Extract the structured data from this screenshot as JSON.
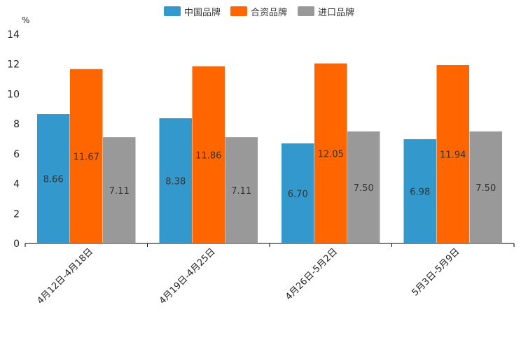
{
  "chart_data": {
    "type": "bar",
    "unit": "%",
    "categories": [
      "4月12日-4月18日",
      "4月19日-4月25日",
      "4月26日-5月2日",
      "5月3日-5月9日"
    ],
    "series": [
      {
        "name": "中国品牌",
        "color": "#3399cc",
        "values": [
          8.66,
          8.38,
          6.7,
          6.98
        ],
        "labels": [
          "8.66",
          "8.38",
          "6.70",
          "6.98"
        ]
      },
      {
        "name": "合资品牌",
        "color": "#ff6600",
        "values": [
          11.67,
          11.86,
          12.05,
          11.94
        ],
        "labels": [
          "11.67",
          "11.86",
          "12.05",
          "11.94"
        ]
      },
      {
        "name": "进口品牌",
        "color": "#999999",
        "values": [
          7.11,
          7.11,
          7.5,
          7.5
        ],
        "labels": [
          "7.11",
          "7.11",
          "7.50",
          "7.50"
        ]
      }
    ],
    "ylim": [
      0,
      14
    ],
    "yticks": [
      0,
      2,
      4,
      6,
      8,
      10,
      12,
      14
    ],
    "ytick_labels": [
      "0",
      "2",
      "4",
      "6",
      "8",
      "10",
      "12",
      "14"
    ],
    "legend_position": "top-center",
    "grid": false
  }
}
